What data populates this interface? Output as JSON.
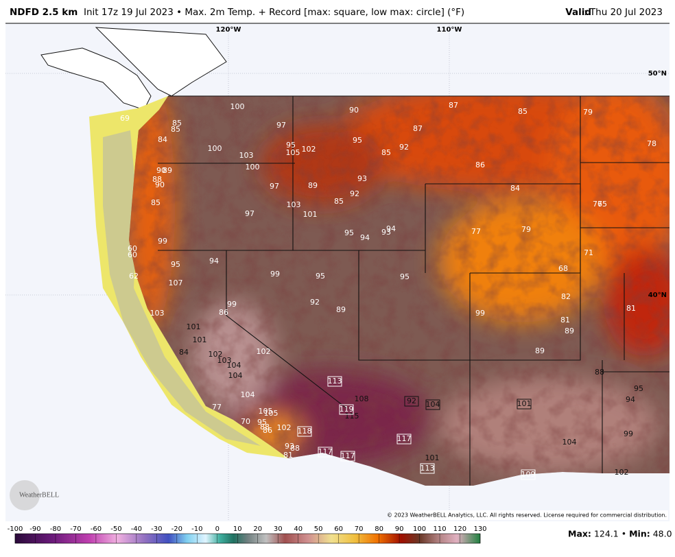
{
  "header": {
    "model": "NDFD 2.5 km",
    "description": "Init 17z 19 Jul 2023 • Max. 2m Temp. + Record [max: square, low max: circle] (°F)",
    "valid_label": "Valid",
    "valid_date": ": Thu 20 Jul 2023"
  },
  "map": {
    "longitudes": [
      "120°W",
      "110°W"
    ],
    "latitudes": [
      "50°N",
      "40°N"
    ],
    "temperatures": [
      69,
      85,
      85,
      84,
      100,
      97,
      90,
      87,
      85,
      79,
      78,
      100,
      103,
      95,
      105,
      102,
      95,
      85,
      92,
      87,
      86,
      90,
      89,
      88,
      90,
      100,
      97,
      89,
      93,
      92,
      85,
      84,
      85,
      103,
      97,
      101,
      76,
      75,
      77,
      79,
      95,
      94,
      93,
      94,
      99,
      60,
      60,
      95,
      94,
      71,
      68,
      62,
      107,
      99,
      95,
      95,
      82,
      92,
      89,
      99,
      86,
      99,
      81,
      81,
      89,
      103,
      101,
      101,
      84,
      102,
      103,
      104,
      102,
      89,
      88,
      104,
      95,
      94,
      108,
      104,
      105,
      105,
      115,
      77,
      70,
      95,
      88,
      86,
      102,
      99,
      104,
      93,
      88,
      81,
      101,
      102
    ],
    "record_max": [
      113,
      119,
      118,
      117,
      117,
      117,
      113,
      92,
      104,
      101,
      109
    ],
    "logo": "WeatherBELL",
    "copyright": "© 2023 WeatherBELL Analytics, LLC. All rights reserved. License required for commercial distribution."
  },
  "colorbar": {
    "ticks": [
      -100,
      -90,
      -80,
      -70,
      -60,
      -50,
      -40,
      -30,
      -20,
      -10,
      0,
      10,
      20,
      30,
      40,
      50,
      60,
      70,
      80,
      90,
      100,
      110,
      120,
      130
    ]
  },
  "footer": {
    "max_label": "Max",
    "max_value": "124.1",
    "separator": "•",
    "min_label": "Min",
    "min_value": "48.0"
  }
}
